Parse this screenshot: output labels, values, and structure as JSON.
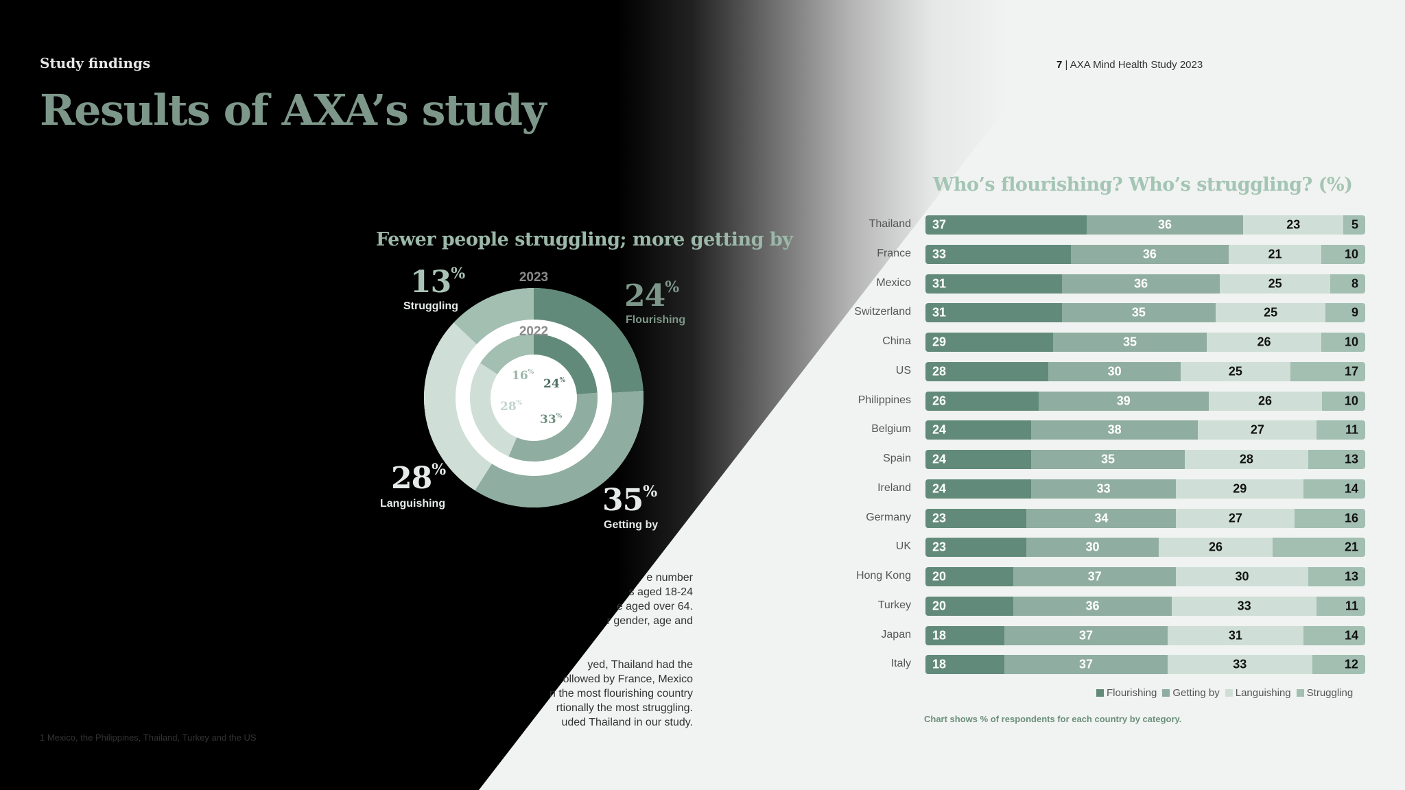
{
  "header": {
    "section_label": "Study findings",
    "title": "Results of AXA’s study",
    "page_number": "7",
    "publication": "| AXA Mind Health Study 2023"
  },
  "donut_title": "Fewer people struggling; more getting by",
  "body_text": {
    "para1": [
      "e number",
      "s aged 18-24",
      "e aged over 64.",
      "r gender, age and"
    ],
    "para2": [
      "yed, Thailand had the",
      "ollowed by France, Mexico",
      "n the most flourishing country",
      "rtionally the most struggling.",
      "uded Thailand in our study."
    ]
  },
  "footnote": "1 Mexico, the Philippines, Thailand, Turkey and the US",
  "colors": {
    "flourishing": "#628a7b",
    "getting_by": "#90ada1",
    "languishing": "#cfdfd7",
    "struggling": "#a2bfb1",
    "title_green": "#7d988a"
  },
  "chart_data": [
    {
      "type": "pie",
      "subtype": "nested-donut",
      "title": "Fewer people struggling; more getting by",
      "rings": [
        {
          "name": "2023",
          "categories": [
            "Flourishing",
            "Getting by",
            "Languishing",
            "Struggling"
          ],
          "values": [
            24,
            35,
            28,
            13
          ]
        },
        {
          "name": "2022",
          "categories": [
            "Flourishing",
            "Getting by",
            "Languishing",
            "Struggling"
          ],
          "values": [
            24,
            33,
            28,
            16
          ]
        }
      ]
    },
    {
      "type": "bar",
      "orientation": "horizontal",
      "stacked": true,
      "title": "Who’s flourishing? Who’s struggling? (%)",
      "categories": [
        "Thailand",
        "France",
        "Mexico",
        "Switzerland",
        "China",
        "US",
        "Philippines",
        "Belgium",
        "Spain",
        "Ireland",
        "Germany",
        "UK",
        "Hong Kong",
        "Turkey",
        "Japan",
        "Italy"
      ],
      "series": [
        {
          "name": "Flourishing",
          "values": [
            37,
            33,
            31,
            31,
            29,
            28,
            26,
            24,
            24,
            24,
            23,
            23,
            20,
            20,
            18,
            18
          ]
        },
        {
          "name": "Getting by",
          "values": [
            36,
            36,
            36,
            35,
            35,
            30,
            39,
            38,
            35,
            33,
            34,
            30,
            37,
            36,
            37,
            37
          ]
        },
        {
          "name": "Languishing",
          "values": [
            23,
            21,
            25,
            25,
            26,
            25,
            26,
            27,
            28,
            29,
            27,
            26,
            30,
            33,
            31,
            33
          ]
        },
        {
          "name": "Struggling",
          "values": [
            5,
            10,
            8,
            9,
            10,
            17,
            10,
            11,
            13,
            14,
            16,
            21,
            13,
            11,
            14,
            12
          ]
        }
      ],
      "legend": "bottom-right",
      "note": "Chart shows % of respondents for each country by category."
    }
  ]
}
